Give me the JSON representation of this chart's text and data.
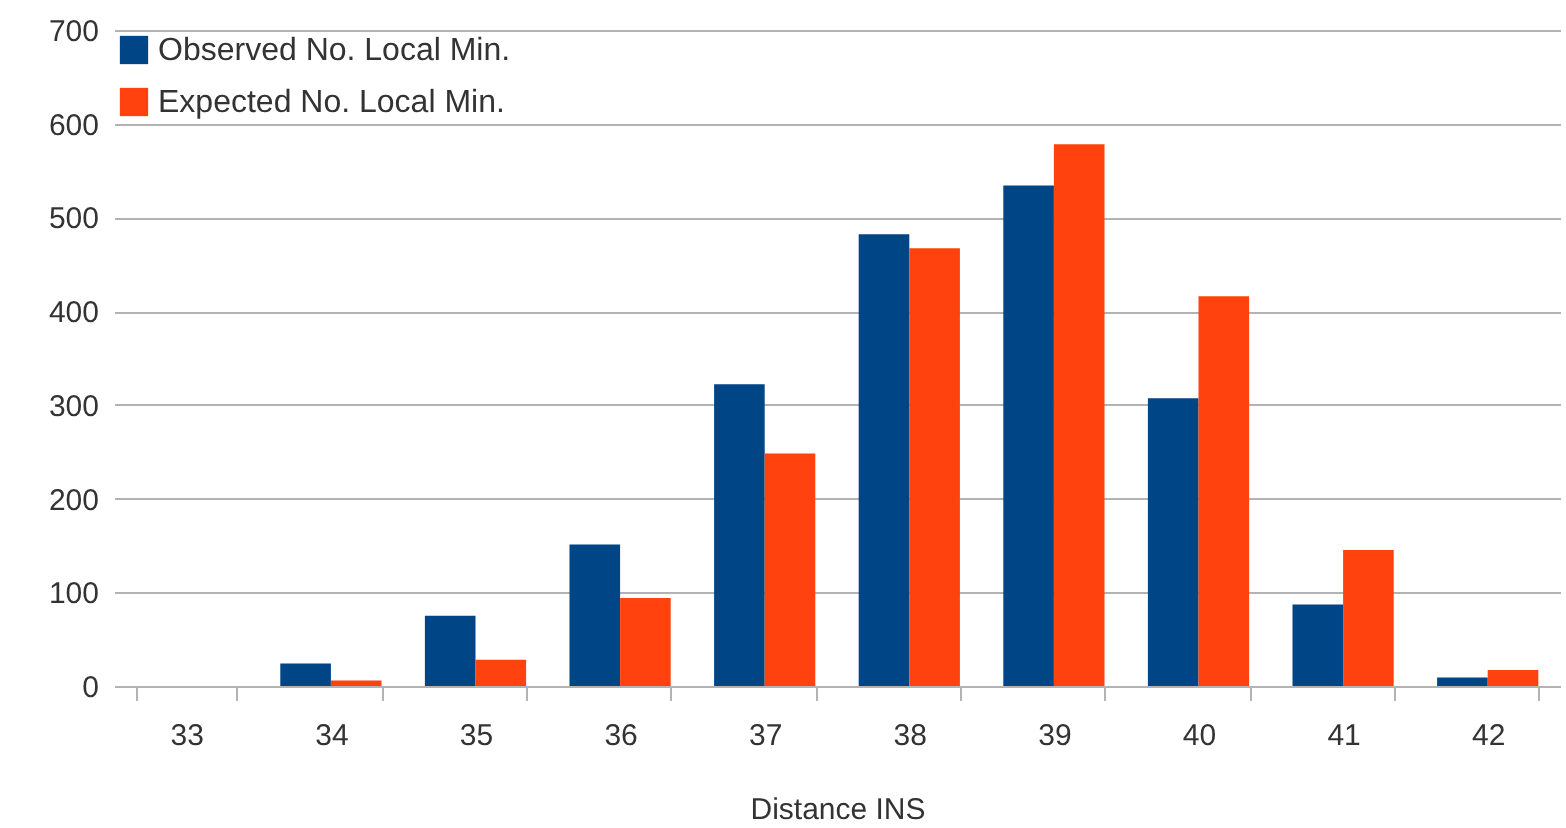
{
  "chart_data": {
    "type": "bar",
    "xlabel": "Distance INS",
    "categories": [
      "33",
      "34",
      "35",
      "36",
      "37",
      "38",
      "39",
      "40",
      "41",
      "42"
    ],
    "series": [
      {
        "name": "Observed No. Local Min.",
        "color": "#004586",
        "values": [
          0,
          24,
          75,
          151,
          322,
          482,
          534,
          307,
          87,
          9
        ]
      },
      {
        "name": "Expected No. Local Min.",
        "color": "#ff420e",
        "values": [
          0,
          6,
          28,
          94,
          248,
          467,
          578,
          416,
          145,
          17
        ]
      }
    ],
    "ylim": [
      0,
      700
    ],
    "yticks": [
      0,
      100,
      200,
      300,
      400,
      500,
      600,
      700
    ],
    "grid": "y",
    "legend": "top left"
  }
}
